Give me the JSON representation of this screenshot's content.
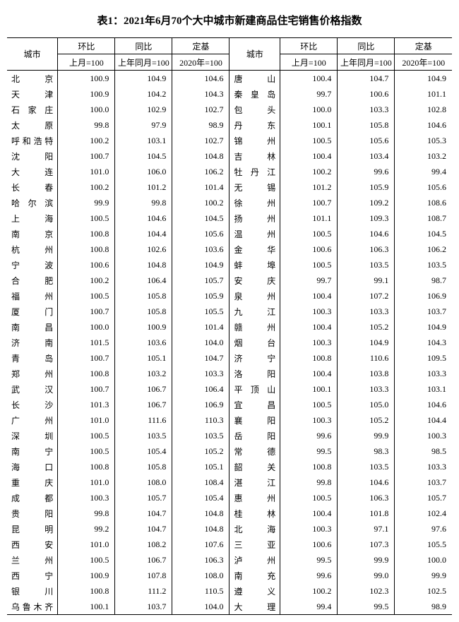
{
  "title": "表1：2021年6月70个大中城市新建商品住宅销售价格指数",
  "headers": {
    "city": "城市",
    "mom": "环比",
    "yoy": "同比",
    "base": "定基",
    "mom_sub": "上月=100",
    "yoy_sub": "上年同月=100",
    "base_sub": "2020年=100"
  },
  "rows": [
    {
      "c1": "北京",
      "m1": "100.9",
      "y1": "104.9",
      "b1": "104.6",
      "c2": "唐山",
      "m2": "100.4",
      "y2": "104.7",
      "b2": "104.9"
    },
    {
      "c1": "天津",
      "m1": "100.9",
      "y1": "104.2",
      "b1": "104.3",
      "c2": "秦皇岛",
      "m2": "99.7",
      "y2": "100.6",
      "b2": "101.1"
    },
    {
      "c1": "石家庄",
      "m1": "100.0",
      "y1": "102.9",
      "b1": "102.7",
      "c2": "包头",
      "m2": "100.0",
      "y2": "103.3",
      "b2": "102.8"
    },
    {
      "c1": "太原",
      "m1": "99.8",
      "y1": "97.9",
      "b1": "98.9",
      "c2": "丹东",
      "m2": "100.1",
      "y2": "105.8",
      "b2": "104.6"
    },
    {
      "c1": "呼和浩特",
      "m1": "100.2",
      "y1": "103.1",
      "b1": "102.7",
      "c2": "锦州",
      "m2": "100.5",
      "y2": "105.6",
      "b2": "105.3"
    },
    {
      "c1": "沈阳",
      "m1": "100.7",
      "y1": "104.5",
      "b1": "104.8",
      "c2": "吉林",
      "m2": "100.4",
      "y2": "103.4",
      "b2": "103.2"
    },
    {
      "c1": "大连",
      "m1": "101.0",
      "y1": "106.0",
      "b1": "106.2",
      "c2": "牡丹江",
      "m2": "100.2",
      "y2": "99.6",
      "b2": "99.4"
    },
    {
      "c1": "长春",
      "m1": "100.2",
      "y1": "101.2",
      "b1": "101.4",
      "c2": "无锡",
      "m2": "101.2",
      "y2": "105.9",
      "b2": "105.6"
    },
    {
      "c1": "哈尔滨",
      "m1": "99.9",
      "y1": "99.8",
      "b1": "100.2",
      "c2": "徐州",
      "m2": "100.7",
      "y2": "109.2",
      "b2": "108.6"
    },
    {
      "c1": "上海",
      "m1": "100.5",
      "y1": "104.6",
      "b1": "104.5",
      "c2": "扬州",
      "m2": "101.1",
      "y2": "109.3",
      "b2": "108.7"
    },
    {
      "c1": "南京",
      "m1": "100.8",
      "y1": "104.4",
      "b1": "105.6",
      "c2": "温州",
      "m2": "100.5",
      "y2": "104.6",
      "b2": "104.5"
    },
    {
      "c1": "杭州",
      "m1": "100.8",
      "y1": "102.6",
      "b1": "103.6",
      "c2": "金华",
      "m2": "100.6",
      "y2": "106.3",
      "b2": "106.2"
    },
    {
      "c1": "宁波",
      "m1": "100.6",
      "y1": "104.8",
      "b1": "104.9",
      "c2": "蚌埠",
      "m2": "100.5",
      "y2": "103.5",
      "b2": "103.5"
    },
    {
      "c1": "合肥",
      "m1": "100.2",
      "y1": "106.4",
      "b1": "105.7",
      "c2": "安庆",
      "m2": "99.7",
      "y2": "99.1",
      "b2": "98.7"
    },
    {
      "c1": "福州",
      "m1": "100.5",
      "y1": "105.8",
      "b1": "105.9",
      "c2": "泉州",
      "m2": "100.4",
      "y2": "107.2",
      "b2": "106.9"
    },
    {
      "c1": "厦门",
      "m1": "100.7",
      "y1": "105.8",
      "b1": "105.5",
      "c2": "九江",
      "m2": "100.3",
      "y2": "103.3",
      "b2": "103.7"
    },
    {
      "c1": "南昌",
      "m1": "100.0",
      "y1": "100.9",
      "b1": "101.4",
      "c2": "赣州",
      "m2": "100.4",
      "y2": "105.2",
      "b2": "104.9"
    },
    {
      "c1": "济南",
      "m1": "101.5",
      "y1": "103.6",
      "b1": "104.0",
      "c2": "烟台",
      "m2": "100.3",
      "y2": "104.9",
      "b2": "104.3"
    },
    {
      "c1": "青岛",
      "m1": "100.7",
      "y1": "105.1",
      "b1": "104.7",
      "c2": "济宁",
      "m2": "100.8",
      "y2": "110.6",
      "b2": "109.5"
    },
    {
      "c1": "郑州",
      "m1": "100.8",
      "y1": "103.2",
      "b1": "103.3",
      "c2": "洛阳",
      "m2": "100.4",
      "y2": "103.8",
      "b2": "103.3"
    },
    {
      "c1": "武汉",
      "m1": "100.7",
      "y1": "106.7",
      "b1": "106.4",
      "c2": "平顶山",
      "m2": "100.1",
      "y2": "103.3",
      "b2": "103.1"
    },
    {
      "c1": "长沙",
      "m1": "101.3",
      "y1": "106.7",
      "b1": "106.9",
      "c2": "宜昌",
      "m2": "100.5",
      "y2": "105.0",
      "b2": "104.6"
    },
    {
      "c1": "广州",
      "m1": "101.0",
      "y1": "111.6",
      "b1": "110.3",
      "c2": "襄阳",
      "m2": "100.3",
      "y2": "105.2",
      "b2": "104.4"
    },
    {
      "c1": "深圳",
      "m1": "100.5",
      "y1": "103.5",
      "b1": "103.5",
      "c2": "岳阳",
      "m2": "99.6",
      "y2": "99.9",
      "b2": "100.3"
    },
    {
      "c1": "南宁",
      "m1": "100.5",
      "y1": "105.4",
      "b1": "105.2",
      "c2": "常德",
      "m2": "99.5",
      "y2": "98.3",
      "b2": "98.5"
    },
    {
      "c1": "海口",
      "m1": "100.8",
      "y1": "105.8",
      "b1": "105.1",
      "c2": "韶关",
      "m2": "100.8",
      "y2": "103.5",
      "b2": "103.3"
    },
    {
      "c1": "重庆",
      "m1": "101.0",
      "y1": "108.0",
      "b1": "108.4",
      "c2": "湛江",
      "m2": "99.8",
      "y2": "104.6",
      "b2": "103.7"
    },
    {
      "c1": "成都",
      "m1": "100.3",
      "y1": "105.7",
      "b1": "105.4",
      "c2": "惠州",
      "m2": "100.5",
      "y2": "106.3",
      "b2": "105.7"
    },
    {
      "c1": "贵阳",
      "m1": "99.8",
      "y1": "104.7",
      "b1": "104.8",
      "c2": "桂林",
      "m2": "100.4",
      "y2": "101.8",
      "b2": "102.4"
    },
    {
      "c1": "昆明",
      "m1": "99.2",
      "y1": "104.7",
      "b1": "104.8",
      "c2": "北海",
      "m2": "100.3",
      "y2": "97.1",
      "b2": "97.6"
    },
    {
      "c1": "西安",
      "m1": "101.0",
      "y1": "108.2",
      "b1": "107.6",
      "c2": "三亚",
      "m2": "100.6",
      "y2": "107.3",
      "b2": "105.5"
    },
    {
      "c1": "兰州",
      "m1": "100.5",
      "y1": "106.7",
      "b1": "106.3",
      "c2": "泸州",
      "m2": "99.5",
      "y2": "99.9",
      "b2": "100.0"
    },
    {
      "c1": "西宁",
      "m1": "100.9",
      "y1": "107.8",
      "b1": "108.0",
      "c2": "南充",
      "m2": "99.6",
      "y2": "99.0",
      "b2": "99.9"
    },
    {
      "c1": "银川",
      "m1": "100.8",
      "y1": "111.2",
      "b1": "110.5",
      "c2": "遵义",
      "m2": "100.2",
      "y2": "102.3",
      "b2": "102.5"
    },
    {
      "c1": "乌鲁木齐",
      "m1": "100.1",
      "y1": "103.7",
      "b1": "104.0",
      "c2": "大理",
      "m2": "99.4",
      "y2": "99.5",
      "b2": "98.9"
    }
  ]
}
